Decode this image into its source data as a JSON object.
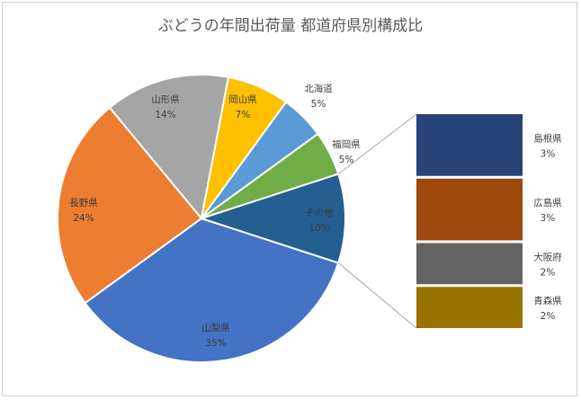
{
  "colors": {
    "text_dark": "#404040",
    "text_light": "#ffffff",
    "connector": "#a6a6a6"
  },
  "chart_data": {
    "type": "bar-of-pie",
    "title": "ぶどうの年間出荷量 都道府県別構成比",
    "pie": [
      {
        "name": "山梨県",
        "value": 35,
        "label": "35%",
        "color": "#4472c4"
      },
      {
        "name": "長野県",
        "value": 24,
        "label": "24%",
        "color": "#ed7d31"
      },
      {
        "name": "山形県",
        "value": 14,
        "label": "14%",
        "color": "#a5a5a5"
      },
      {
        "name": "岡山県",
        "value": 7,
        "label": "7%",
        "color": "#ffc000"
      },
      {
        "name": "北海道",
        "value": 5,
        "label": "5%",
        "color": "#5b9bd5"
      },
      {
        "name": "福岡県",
        "value": 5,
        "label": "5%",
        "color": "#70ad47"
      },
      {
        "name": "その他",
        "value": 10,
        "label": "10%",
        "color": "#255e91"
      }
    ],
    "other_breakdown": [
      {
        "name": "島根県",
        "value": 3,
        "label": "3%",
        "color": "#264478"
      },
      {
        "name": "広島県",
        "value": 3,
        "label": "3%",
        "color": "#9e480e"
      },
      {
        "name": "大阪府",
        "value": 2,
        "label": "2%",
        "color": "#636363"
      },
      {
        "name": "青森県",
        "value": 2,
        "label": "2%",
        "color": "#997300"
      }
    ]
  }
}
